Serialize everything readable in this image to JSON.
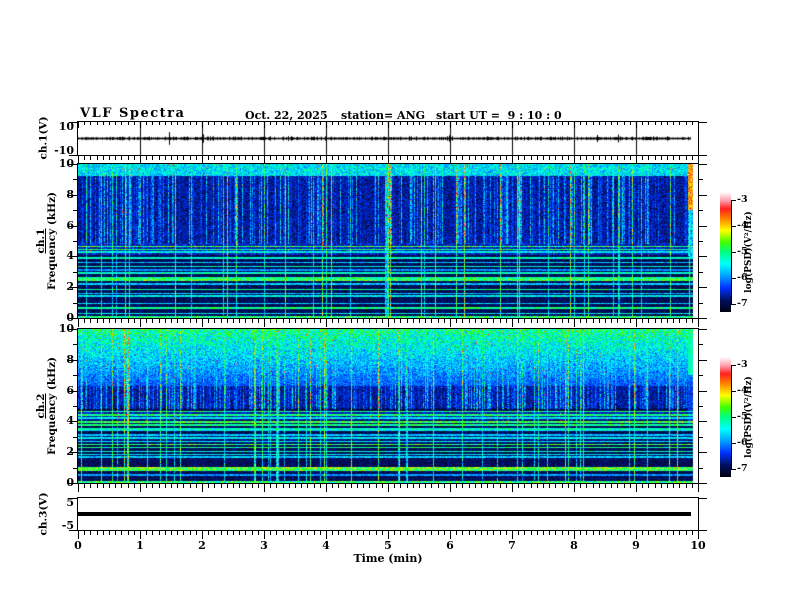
{
  "header": {
    "title": "VLF Spectra",
    "date": "Oct. 22, 2025",
    "station": "station= ANG",
    "start_ut": "start UT =  9 : 10 : 0"
  },
  "xaxis": {
    "label": "Time (min)",
    "ticks": [
      "0",
      "1",
      "2",
      "3",
      "4",
      "5",
      "6",
      "7",
      "8",
      "9",
      "10"
    ]
  },
  "ylabels": {
    "ch1v": "ch.1(V)",
    "spec1_ch": "ch.1",
    "spec1_freq": "Frequency (kHz)",
    "spec2_ch": "ch.2",
    "spec2_freq": "Frequency (kHz)",
    "ch3v": "ch.3(V)"
  },
  "yticks": {
    "ch1v": [
      "10",
      "-10"
    ],
    "spec": [
      "10",
      "8",
      "6",
      "4",
      "2",
      "0"
    ],
    "ch3": [
      "5",
      "-5"
    ]
  },
  "colorbar": {
    "label": "log(PSD)(V²/Hz)",
    "ticks": [
      "-3",
      "-4",
      "-5",
      "-6",
      "-7"
    ]
  },
  "chart_data": {
    "type": "heatmap",
    "figure": "VLF multi-panel spectra display",
    "x": {
      "label": "Time (min)",
      "lim": [
        0,
        10
      ],
      "ticks": [
        0,
        1,
        2,
        3,
        4,
        5,
        6,
        7,
        8,
        9,
        10
      ],
      "minor_step": 0.1,
      "data_end_min": 9.9
    },
    "colorbar": {
      "label": "log(PSD)(V²/Hz)",
      "ticks": [
        -3,
        -4,
        -5,
        -6,
        -7
      ],
      "lim": [
        -7,
        -3
      ]
    },
    "colormap_stops": [
      [
        0,
        "#000010"
      ],
      [
        0.1,
        "#001060"
      ],
      [
        0.2,
        "#0030ff"
      ],
      [
        0.3,
        "#00a0ff"
      ],
      [
        0.4,
        "#00ffff"
      ],
      [
        0.5,
        "#00ff80"
      ],
      [
        0.58,
        "#40ff00"
      ],
      [
        0.68,
        "#ffff00"
      ],
      [
        0.78,
        "#ff8000"
      ],
      [
        0.86,
        "#ff2020"
      ],
      [
        0.93,
        "#ffa0b0"
      ],
      [
        1,
        "#ffffff"
      ]
    ],
    "panels": [
      {
        "name": "ch1_voltage",
        "type": "line",
        "ylabel": "ch.1(V)",
        "ylim": [
          -10,
          10
        ],
        "yticks": [
          10,
          -10
        ],
        "description": "Noisy waveform fluctuating about 0 V with sporadic impulsive spikes up to about ±8 V; trace ends near 9.9 min; vertical gridlines at each minute"
      },
      {
        "name": "ch1_spectrogram",
        "type": "heatmap",
        "ylabel": "ch.1 Frequency (kHz)",
        "ylim": [
          0,
          10
        ],
        "yticks": [
          10,
          8,
          6,
          4,
          2,
          0
        ],
        "bands_khz": [
          [
            4.1,
            4.9,
            0.22
          ]
        ],
        "lines_khz": [
          [
            4.65,
            0.55
          ],
          [
            4.45,
            0.5
          ],
          [
            4.3,
            0.4
          ],
          [
            3.9,
            0.45
          ],
          [
            3.6,
            0.35
          ],
          [
            3.35,
            0.45
          ],
          [
            3.1,
            0.3
          ],
          [
            2.9,
            0.45
          ],
          [
            2.6,
            0.5
          ],
          [
            2.45,
            0.55
          ],
          [
            2.2,
            0.35
          ],
          [
            1.85,
            0.5
          ],
          [
            1.6,
            0.35
          ],
          [
            1.45,
            0.4
          ],
          [
            0.95,
            0.35
          ],
          [
            0.65,
            0.5
          ],
          [
            0.3,
            0.4
          ]
        ],
        "top_strip_khz": 9.2,
        "description": "Dense broadband vertical impulse striations (sferics) over 0-10 kHz, persistent narrowband horizontal lines below 5 kHz, enhanced band near 4.1-4.9 kHz, bright column at far right edge above 7 kHz"
      },
      {
        "name": "ch2_spectrogram",
        "type": "heatmap",
        "ylabel": "ch.2 Frequency (kHz)",
        "ylim": [
          0,
          10
        ],
        "yticks": [
          10,
          8,
          6,
          4,
          2,
          0
        ],
        "bright_region_khz": [
          6.3,
          10
        ],
        "bands_khz": [
          [
            4.1,
            4.7,
            0.2
          ],
          [
            2.6,
            3.2,
            0.15
          ]
        ],
        "lines_khz": [
          [
            4.65,
            0.5
          ],
          [
            4.4,
            0.5
          ],
          [
            4.2,
            0.4
          ],
          [
            3.95,
            0.55
          ],
          [
            3.75,
            0.5
          ],
          [
            3.5,
            0.45
          ],
          [
            3.4,
            0.4
          ],
          [
            3.1,
            0.35
          ],
          [
            2.9,
            0.4
          ],
          [
            2.7,
            0.4
          ],
          [
            2.5,
            0.55
          ],
          [
            2.3,
            0.5
          ],
          [
            2.05,
            0.45
          ],
          [
            1.85,
            0.4
          ],
          [
            1.7,
            0.35
          ],
          [
            0.97,
            0.6
          ],
          [
            0.85,
            0.55
          ],
          [
            0.5,
            0.3
          ]
        ],
        "description": "Intense broadband activity from ~6.3-10 kHz (green-yellow with red speckles), vertical impulse striations across the whole band, persistent narrowband lines below 5 kHz"
      },
      {
        "name": "ch3_voltage",
        "type": "line",
        "ylabel": "ch.3(V)",
        "ylim": [
          -5,
          5
        ],
        "yticks": [
          5,
          -5
        ],
        "description": "Flat constant trace at 0 V for the full record"
      }
    ]
  }
}
